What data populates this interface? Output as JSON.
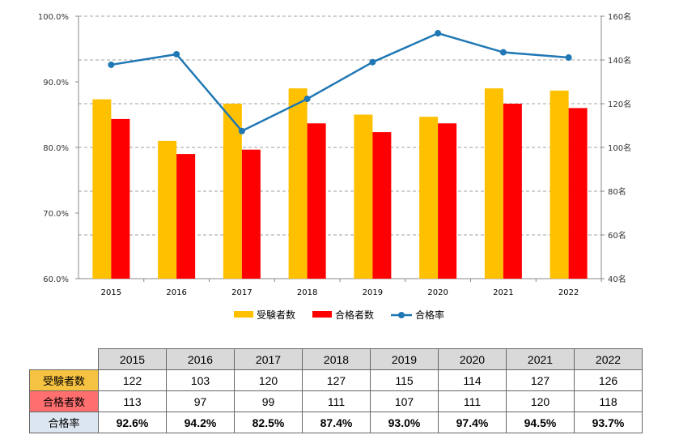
{
  "chart_data": {
    "type": "bar+line",
    "categories": [
      "2015",
      "2016",
      "2017",
      "2018",
      "2019",
      "2020",
      "2021",
      "2022"
    ],
    "series": [
      {
        "name": "受験者数",
        "type": "bar",
        "axis": "right",
        "color": "#ffc000",
        "values": [
          122,
          103,
          120,
          127,
          115,
          114,
          127,
          126
        ]
      },
      {
        "name": "合格者数",
        "type": "bar",
        "axis": "right",
        "color": "#ff0000",
        "values": [
          113,
          97,
          99,
          111,
          107,
          111,
          120,
          118
        ]
      },
      {
        "name": "合格率",
        "type": "line",
        "axis": "left",
        "color": "#1f77b4",
        "values": [
          92.6,
          94.2,
          82.5,
          87.4,
          93.0,
          97.4,
          94.5,
          93.7
        ]
      }
    ],
    "left_axis": {
      "min": 60,
      "max": 100,
      "ticks": [
        "60.0%",
        "70.0%",
        "80.0%",
        "90.0%",
        "100.0%"
      ]
    },
    "right_axis": {
      "min": 40,
      "max": 160,
      "ticks": [
        "40名",
        "60名",
        "80名",
        "100名",
        "120名",
        "140名",
        "160名"
      ]
    },
    "legend_position": "bottom",
    "grid": "dashed"
  },
  "table": {
    "headers": [
      "2015",
      "2016",
      "2017",
      "2018",
      "2019",
      "2020",
      "2021",
      "2022"
    ],
    "rows": [
      {
        "label": "受験者数",
        "cells": [
          "122",
          "103",
          "120",
          "127",
          "115",
          "114",
          "127",
          "126"
        ]
      },
      {
        "label": "合格者数",
        "cells": [
          "113",
          "97",
          "99",
          "111",
          "107",
          "111",
          "120",
          "118"
        ]
      },
      {
        "label": "合格率",
        "cells": [
          "92.6%",
          "94.2%",
          "82.5%",
          "87.4%",
          "93.0%",
          "97.4%",
          "94.5%",
          "93.7%"
        ]
      }
    ]
  }
}
